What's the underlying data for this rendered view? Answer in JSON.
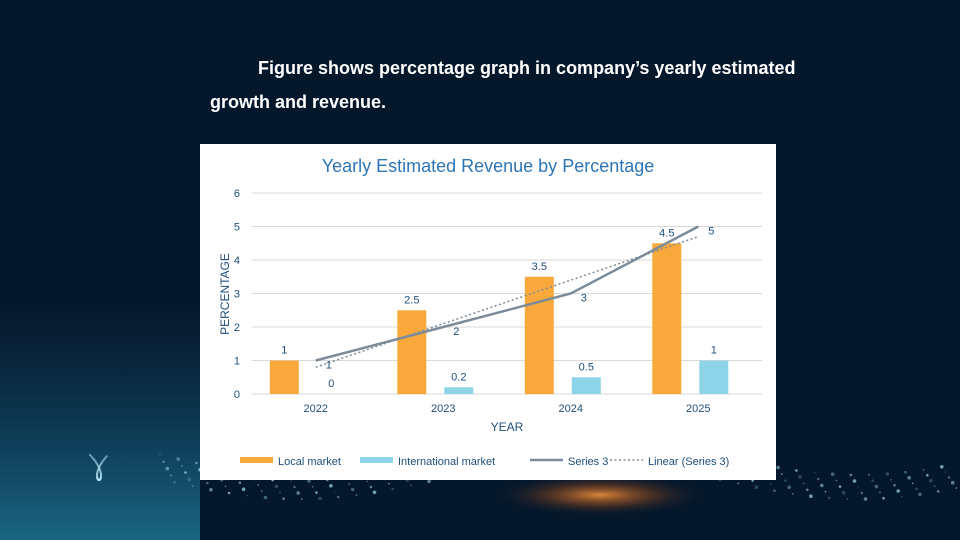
{
  "caption": {
    "line1": "Figure shows percentage graph in company’s yearly estimated",
    "line2": "growth and revenue."
  },
  "chart_data": {
    "type": "bar",
    "title": "Yearly Estimated Revenue by Percentage",
    "xlabel": "YEAR",
    "ylabel": "PERCENTAGE",
    "categories": [
      "2022",
      "2023",
      "2024",
      "2025"
    ],
    "ylim": [
      0,
      6
    ],
    "yticks": [
      "0",
      "1",
      "2",
      "3",
      "4",
      "5",
      "6"
    ],
    "grid": true,
    "legend_position": "bottom",
    "series": [
      {
        "name": "Local market",
        "kind": "bar",
        "color": "#F9A93B",
        "values": [
          1,
          2.5,
          3.5,
          4.5
        ],
        "labels": [
          "1",
          "2.5",
          "3.5",
          "4.5"
        ]
      },
      {
        "name": "International market",
        "kind": "bar",
        "color": "#8DD4E8",
        "values": [
          0,
          0.2,
          0.5,
          1
        ],
        "labels": [
          "0",
          "0.2",
          "0.5",
          "1"
        ]
      },
      {
        "name": "Series 3",
        "kind": "line",
        "color": "#7B8B99",
        "values": [
          1,
          2,
          3,
          5
        ],
        "labels": [
          "1",
          "2",
          "3",
          "5"
        ]
      },
      {
        "name": "Linear (Series 3)",
        "kind": "trendline",
        "color": "#7B8B99",
        "of_series": "Series 3"
      }
    ],
    "colors": {
      "title": "#2E75B6",
      "axis_text": "#1F4E79",
      "grid": "#D9D9D9"
    }
  }
}
